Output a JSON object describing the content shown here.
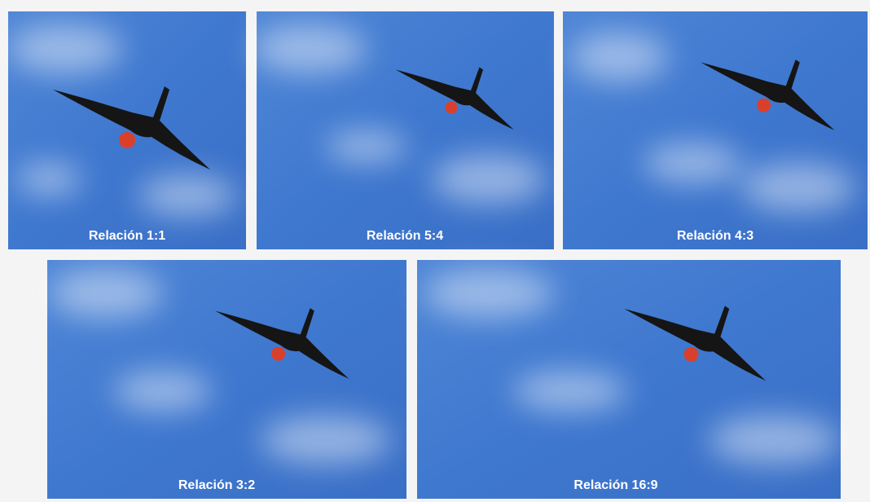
{
  "panels": [
    {
      "label": "Relación 1:1"
    },
    {
      "label": "Relación 5:4"
    },
    {
      "label": "Relación 4:3"
    },
    {
      "label": "Relación 3:2"
    },
    {
      "label": "Relación 16:9"
    }
  ]
}
